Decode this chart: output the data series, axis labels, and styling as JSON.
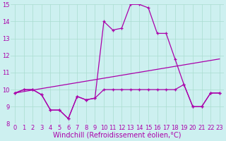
{
  "xlabel": "Windchill (Refroidissement éolien,°C)",
  "xlim": [
    -0.5,
    23.5
  ],
  "ylim": [
    8,
    15
  ],
  "yticks": [
    8,
    9,
    10,
    11,
    12,
    13,
    14,
    15
  ],
  "xticks": [
    0,
    1,
    2,
    3,
    4,
    5,
    6,
    7,
    8,
    9,
    10,
    11,
    12,
    13,
    14,
    15,
    16,
    17,
    18,
    19,
    20,
    21,
    22,
    23
  ],
  "bg_color": "#cdf0f0",
  "grid_color": "#aaddd0",
  "line_color": "#aa00aa",
  "line1_x": [
    0,
    1,
    2,
    3,
    4,
    5,
    6,
    7,
    8,
    9,
    10,
    11,
    12,
    13,
    14,
    15,
    16,
    17,
    18,
    19,
    20,
    21,
    22,
    23
  ],
  "line1_y": [
    9.8,
    10.0,
    10.0,
    9.7,
    8.8,
    8.8,
    8.3,
    9.6,
    9.4,
    9.5,
    10.0,
    10.0,
    10.0,
    10.0,
    10.0,
    10.0,
    10.0,
    10.0,
    10.0,
    10.3,
    9.0,
    9.0,
    9.8,
    9.8
  ],
  "line2_x": [
    0,
    23
  ],
  "line2_y": [
    9.8,
    11.8
  ],
  "line3_x": [
    0,
    1,
    2,
    3,
    4,
    5,
    6,
    7,
    8,
    9,
    10,
    11,
    12,
    13,
    14,
    15,
    16,
    17,
    18,
    19,
    20,
    21,
    22,
    23
  ],
  "line3_y": [
    9.8,
    10.0,
    10.0,
    9.7,
    8.8,
    8.8,
    8.3,
    9.6,
    9.4,
    9.5,
    14.0,
    13.5,
    13.6,
    15.0,
    15.0,
    14.8,
    13.3,
    13.3,
    11.8,
    10.3,
    9.0,
    9.0,
    9.8,
    9.8
  ],
  "tick_fontsize": 6,
  "label_fontsize": 7
}
